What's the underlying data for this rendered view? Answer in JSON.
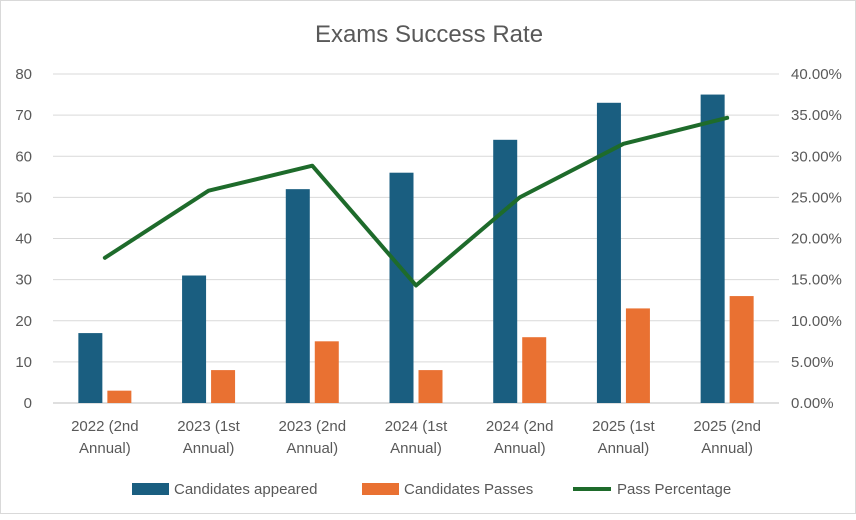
{
  "chart_data": {
    "type": "bar",
    "title": "Exams Success Rate",
    "categories": [
      [
        "2022 (2nd",
        "Annual)"
      ],
      [
        "2023 (1st",
        "Annual)"
      ],
      [
        "2023 (2nd",
        "Annual)"
      ],
      [
        "2024 (1st",
        "Annual)"
      ],
      [
        "2024 (2nd",
        "Annual)"
      ],
      [
        "2025 (1st",
        "Annual)"
      ],
      [
        "2025 (2nd",
        "Annual)"
      ]
    ],
    "series": [
      {
        "name": "Candidates appeared",
        "type": "bar",
        "axis": "left",
        "color": "#1a5e80",
        "values": [
          17,
          31,
          52,
          56,
          64,
          73,
          75
        ]
      },
      {
        "name": "Candidates Passes",
        "type": "bar",
        "axis": "left",
        "color": "#e97132",
        "values": [
          3,
          8,
          15,
          8,
          16,
          23,
          26
        ]
      },
      {
        "name": "Pass Percentage",
        "type": "line",
        "axis": "right",
        "color": "#1e6b2b",
        "values": [
          0.1765,
          0.2581,
          0.2885,
          0.1429,
          0.25,
          0.3151,
          0.3467
        ]
      }
    ],
    "y_left": {
      "min": 0,
      "max": 80,
      "step": 10,
      "tick_labels": [
        "0",
        "10",
        "20",
        "30",
        "40",
        "50",
        "60",
        "70",
        "80"
      ]
    },
    "y_right": {
      "min": 0,
      "max": 0.4,
      "step": 0.05,
      "tick_labels": [
        "0.00%",
        "5.00%",
        "10.00%",
        "15.00%",
        "20.00%",
        "25.00%",
        "30.00%",
        "35.00%",
        "40.00%"
      ]
    },
    "legend_position": "bottom",
    "gridlines": true
  }
}
